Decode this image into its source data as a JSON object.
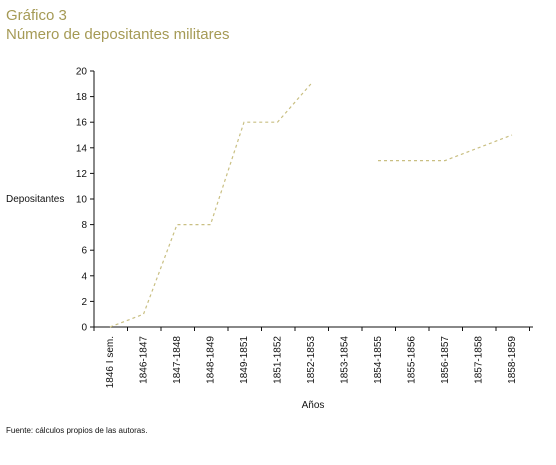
{
  "header": {
    "label": "Gráfico 3",
    "title": "Número de depositantes militares"
  },
  "chart_data": {
    "type": "line",
    "title": "Número de depositantes militares",
    "categories": [
      "1846 I sem.",
      "1846-1847",
      "1847-1848",
      "1848-1849",
      "1849-1851",
      "1851-1852",
      "1852-1853",
      "1853-1854",
      "1854-1855",
      "1855-1856",
      "1856-1857",
      "1857-1858",
      "1858-1859"
    ],
    "series": [
      {
        "values": [
          0,
          1,
          8,
          8,
          16,
          16,
          19,
          null,
          13,
          13,
          13,
          14,
          15
        ],
        "color": "#c9bf82",
        "style": "dashed"
      }
    ],
    "xlabel": "Años",
    "ylabel": "Depositantes",
    "ylim": [
      0,
      20
    ],
    "yticks": [
      0,
      2,
      4,
      6,
      8,
      10,
      12,
      14,
      16,
      18,
      20
    ],
    "grid": false,
    "legend": "none"
  },
  "footer": {
    "source": "Fuente: cálculos propios de las autoras."
  },
  "colors": {
    "title": "#a59a55",
    "line": "#c9bf82",
    "axis": "#111111"
  }
}
